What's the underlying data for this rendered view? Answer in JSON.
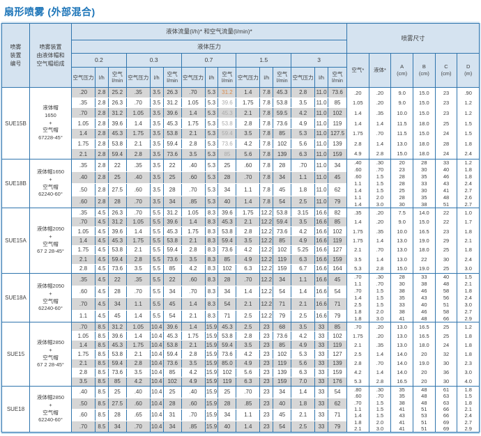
{
  "palette": {
    "accent_blue": "#1b74b8",
    "border_blue": "#2e74ad",
    "header_bg": "#d5e3f0",
    "row_gray": "#d6d6d6",
    "muted_text": "#a9a9a9",
    "highlight_orange": "#d78b4f"
  },
  "title": "扇形喷雾 (外部混合)",
  "header": {
    "device_id": "喷雾\n装置\n编号",
    "composition": "喷雾装置\n由液体帽和\n空气帽组成",
    "flow_title": "液体流量(l/h)* 和空气流量(l/min)*",
    "liquid_pressure": "液体压力",
    "pressures": [
      "0.2",
      "0.3",
      "0.7",
      "1.5",
      "3"
    ],
    "sub_air_pressure": "空气压力",
    "sub_liquid_flow": "l/h",
    "sub_air_flow": "空气\nl/min",
    "spray_size": "喷雾尺寸",
    "dim_cols": [
      "空气*",
      "液体*",
      "A\n(cm)",
      "B\n(cm)",
      "C\n(cm)",
      "D\n(m)"
    ]
  },
  "blocks": [
    {
      "id": "SUE15B",
      "composition": [
        "液体帽",
        "1650",
        "+",
        "空气帽",
        "67228-45°"
      ],
      "shade_start": "gray",
      "highlight": {
        "muted_col": 8,
        "orange_row": 0
      },
      "rows": [
        [
          ".20",
          "2.8",
          "25.2",
          ".35",
          "3.5",
          "26.3",
          ".70",
          "5.3",
          "31.2",
          "1.4",
          "7.8",
          "45.3",
          "2.8",
          "11.0",
          "73.6"
        ],
        [
          ".35",
          "2.8",
          "26.3",
          ".70",
          "3.5",
          "31.2",
          "1.05",
          "5.3",
          "39.6",
          "1.75",
          "7.8",
          "53.8",
          "3.5",
          "11.0",
          "85"
        ],
        [
          ".70",
          "2.8",
          "31.2",
          "1.05",
          "3.5",
          "39.6",
          "1.4",
          "5.3",
          "45.3",
          "2.1",
          "7.8",
          "59.5",
          "4.2",
          "11.0",
          "102"
        ],
        [
          "1.05",
          "2.8",
          "39.6",
          "1.4",
          "3.5",
          "45.3",
          "1.75",
          "5.3",
          "53.8",
          "2.8",
          "7.8",
          "73.6",
          "4.9",
          "11.0",
          "119"
        ],
        [
          "1.4",
          "2.8",
          "45.3",
          "1.75",
          "3.5",
          "53.8",
          "2.1",
          "5.3",
          "59.4",
          "3.5",
          "7.8",
          "85",
          "5.3",
          "11.0",
          "127.5"
        ],
        [
          "1.75",
          "2.8",
          "53.8",
          "2.1",
          "3.5",
          "59.4",
          "2.8",
          "5.3",
          "73.6",
          "4.2",
          "7.8",
          "102",
          "5.6",
          "11.0",
          "139"
        ],
        [
          "2.1",
          "2.8",
          "59.4",
          "2.8",
          "3.5",
          "73.6",
          "3.5",
          "5.3",
          "85",
          "5.6",
          "7.8",
          "139",
          "6.3",
          "11.0",
          "159"
        ]
      ],
      "dims": [
        [
          ".20",
          ".20",
          "9.0",
          "15.0",
          "23",
          ".90"
        ],
        [
          "1.05",
          ".20",
          "9.0",
          "15.0",
          "23",
          "1.2"
        ],
        [
          "1.4",
          ".35",
          "10.0",
          "15.0",
          "23",
          "1.2"
        ],
        [
          "1.4",
          "1.4",
          "11.5",
          "18.0",
          "25",
          "1.5"
        ],
        [
          "1.75",
          ".70",
          "11.5",
          "15.0",
          "24",
          "1.5"
        ],
        [
          "2.8",
          "1.4",
          "13.0",
          "18.0",
          "28",
          "1.8"
        ],
        [
          "4.9",
          "2.8",
          "15.0",
          "18.0",
          "24",
          "2.4"
        ]
      ]
    },
    {
      "id": "SUE18B",
      "composition": [
        "液体帽1650",
        "+",
        "空气帽",
        "62240-60°"
      ],
      "shade_start": "white",
      "rows": [
        [
          ".35",
          "2.8",
          "22",
          ".35",
          "3.5",
          "22",
          ".40",
          "5.3",
          "25",
          ".60",
          "7.8",
          "28",
          ".70",
          "11.0",
          "34"
        ],
        [
          ".40",
          "2.8",
          "25",
          ".40",
          "3.5",
          "25",
          ".60",
          "5.3",
          "28",
          ".70",
          "7.8",
          "34",
          "1.1",
          "11.0",
          "45"
        ],
        [
          ".50",
          "2.8",
          "27.5",
          ".60",
          "3.5",
          "28",
          ".70",
          "5.3",
          "34",
          "1.1",
          "7.8",
          "45",
          "1.8",
          "11.0",
          "62"
        ],
        [
          ".60",
          "2.8",
          "28",
          ".70",
          "3.5",
          "34",
          ".85",
          "5.3",
          "40",
          "1.4",
          "7.8",
          "54",
          "2.5",
          "11.0",
          "79"
        ]
      ],
      "dims": [
        [
          ".40",
          ".30",
          "20",
          "28",
          "33",
          "1.2"
        ],
        [
          ".60",
          ".70",
          "23",
          "30",
          "40",
          "1.8"
        ],
        [
          ".60",
          "1.5",
          "28",
          "35",
          "46",
          "1.8"
        ],
        [
          "1.1",
          "1.5",
          "28",
          "33",
          "43",
          "2.4"
        ],
        [
          "1.4",
          "1.5",
          "25",
          "30",
          "41",
          "2.7"
        ],
        [
          "1.1",
          "2.0",
          "28",
          "35",
          "48",
          "2.6"
        ],
        [
          "1.4",
          "3.0",
          "30",
          "38",
          "51",
          "2.7"
        ]
      ]
    },
    {
      "id": "SUE15A",
      "composition": [
        "液体帽2050",
        "+",
        "空气帽",
        "67 2 28-45°"
      ],
      "shade_start": "white",
      "rows": [
        [
          ".35",
          "4.5",
          "26.3",
          ".70",
          "5.5",
          "31.2",
          "1.05",
          "8.3",
          "39.6",
          "1.75",
          "12.2",
          "53.8",
          "3.15",
          "16.6",
          "82"
        ],
        [
          ".70",
          "4.5",
          "31.2",
          "1.05",
          "5.5",
          "39.6",
          "1.4",
          "8.3",
          "45.3",
          "2.1",
          "12.2",
          "59.4",
          "3.5",
          "16.6",
          "85"
        ],
        [
          "1.05",
          "4.5",
          "39.6",
          "1.4",
          "5.5",
          "45.3",
          "1.75",
          "8.3",
          "53.8",
          "2.8",
          "12.2",
          "73.6",
          "4.2",
          "16.6",
          "102"
        ],
        [
          "1.4",
          "4.5",
          "45.3",
          "1.75",
          "5.5",
          "53.8",
          "2.1",
          "8.3",
          "59.4",
          "3.5",
          "12.2",
          "85",
          "4.9",
          "16.6",
          "119"
        ],
        [
          "1.75",
          "4.5",
          "53.8",
          "2.1",
          "5.5",
          "59.4",
          "2.8",
          "8.3",
          "73.6",
          "4.2",
          "12.2",
          "102",
          "5.25",
          "16.6",
          "127"
        ],
        [
          "2.1",
          "4.5",
          "59.4",
          "2.8",
          "5.5",
          "73.6",
          "3.5",
          "8.3",
          "85",
          "4.9",
          "12.2",
          "119",
          "6.3",
          "16.6",
          "159"
        ],
        [
          "2.8",
          "4.5",
          "73.6",
          "3.5",
          "5.5",
          "85",
          "4.2",
          "8.3",
          "102",
          "6.3",
          "12.2",
          "159",
          "6.7",
          "16.6",
          "164"
        ]
      ],
      "dims": [
        [
          ".35",
          ".20",
          "7.5",
          "14.0",
          "22",
          "1.0"
        ],
        [
          "1.4",
          ".20",
          "9.0",
          "15.0",
          "22",
          "1.7"
        ],
        [
          "1.75",
          ".35",
          "10.0",
          "16.5",
          "23",
          "1.8"
        ],
        [
          "1.75",
          "1.4",
          "13.0",
          "19.0",
          "29",
          "2.1"
        ],
        [
          "2.1",
          ".70",
          "13.0",
          "18.0",
          "25",
          "1.8"
        ],
        [
          "3.5",
          "1.4",
          "13.0",
          "22",
          "30",
          "2.4"
        ],
        [
          "5.3",
          "2.8",
          "15.0",
          "19.0",
          "25",
          "3.0"
        ]
      ]
    },
    {
      "id": "SUE18A",
      "composition": [
        "液体帽2050",
        "+",
        "空气帽",
        "62240-60°"
      ],
      "shade_start": "gray",
      "rows": [
        [
          ".35",
          "4.5",
          "22",
          ".35",
          "5.5",
          "22",
          ".60",
          "8.3",
          "28",
          ".70",
          "12.2",
          "34",
          "1.1",
          "16.6",
          "45"
        ],
        [
          ".60",
          "4.5",
          "28",
          ".70",
          "5.5",
          "34",
          ".70",
          "8.3",
          "34",
          "1.4",
          "12.2",
          "54",
          "1.4",
          "16.6",
          "54"
        ],
        [
          ".70",
          "4.5",
          "34",
          "1.1",
          "5.5",
          "45",
          "1.4",
          "8.3",
          "54",
          "2.1",
          "12.2",
          "71",
          "2.1",
          "16.6",
          "71"
        ],
        [
          "1.1",
          "4.5",
          "45",
          "1.4",
          "5.5",
          "54",
          "2.1",
          "8.3",
          "71",
          "2.5",
          "12.2",
          "79",
          "2.5",
          "16.6",
          "79"
        ]
      ],
      "dims": [
        [
          ".70",
          ".30",
          "28",
          "33",
          "40",
          "1.5"
        ],
        [
          "1.1",
          ".70",
          "30",
          "38",
          "48",
          "2.1"
        ],
        [
          ".70",
          "1.5",
          "38",
          "46",
          "58",
          "1.8"
        ],
        [
          "1.4",
          "1.5",
          "35",
          "43",
          "56",
          "2.4"
        ],
        [
          "2.5",
          "1.5",
          "33",
          "40",
          "51",
          "3.0"
        ],
        [
          "1.8",
          "2.0",
          "38",
          "46",
          "58",
          "2.7"
        ],
        [
          "1.8",
          "3.0",
          "41",
          "48",
          "66",
          "2.9"
        ]
      ]
    },
    {
      "id": "SUE15",
      "composition": [
        "液体帽2850",
        "+",
        "空气帽",
        "67 2 28-45°"
      ],
      "shade_start": "gray",
      "rows": [
        [
          ".70",
          "8.5",
          "31.2",
          "1.05",
          "10.4",
          "39.6",
          "1.4",
          "15.9",
          "45.3",
          "2.5",
          "23",
          "68",
          "3.5",
          "33",
          "85"
        ],
        [
          "1.05",
          "8.5",
          "39.6",
          "1.4",
          "10.4",
          "45.3",
          "1.75",
          "15.9",
          "53.8",
          "2.8",
          "23",
          "73.6",
          "4.2",
          "33",
          "102"
        ],
        [
          "1.4",
          "8.5",
          "45.3",
          "1.75",
          "10.4",
          "53.8",
          "2.1",
          "15.9",
          "59.4",
          "3.5",
          "23",
          "85",
          "4.9",
          "33",
          "119"
        ],
        [
          "1.75",
          "8.5",
          "53.8",
          "2.1",
          "10.4",
          "59.4",
          "2.8",
          "15.9",
          "73.6",
          "4.2",
          "23",
          "102",
          "5.3",
          "33",
          "127"
        ],
        [
          "2.1",
          "8.5",
          "59.4",
          "2.8",
          "10.4",
          "73.6",
          "3.5",
          "15.9",
          "85.0",
          "4.9",
          "23",
          "119",
          "5.6",
          "33",
          "139"
        ],
        [
          "2.8",
          "8.5",
          "73.6",
          "3.5",
          "10.4",
          "85",
          "4.2",
          "15.9",
          "102",
          "5.6",
          "23",
          "139",
          "6.3",
          "33",
          "159"
        ],
        [
          "3.5",
          "8.5",
          "85",
          "4.2",
          "10.4",
          "102",
          "4.9",
          "15.9",
          "119",
          "6.3",
          "23",
          "159",
          "7.0",
          "33",
          "176"
        ]
      ],
      "dims": [
        [
          ".70",
          ".20",
          "13.0",
          "16.5",
          "25",
          "1.2"
        ],
        [
          "1.75",
          ".20",
          "13.0",
          "16.5",
          "25",
          "1.8"
        ],
        [
          "2.1",
          ".35",
          "13.0",
          "18.0",
          "24",
          "1.8"
        ],
        [
          "2.5",
          "1.4",
          "14.0",
          "20",
          "32",
          "1.8"
        ],
        [
          "2.8",
          ".70",
          "14.0",
          "19.0",
          "30",
          "2.3"
        ],
        [
          "4.2",
          "1.4",
          "14.0",
          "20",
          "36",
          "3.0"
        ],
        [
          "5.3",
          "2.8",
          "16.5",
          "20",
          "30",
          "4.0"
        ]
      ]
    },
    {
      "id": "SUE18",
      "composition": [
        "液体帽2850",
        "+",
        "空气帽",
        "62240-60°"
      ],
      "shade_start": "white",
      "rows": [
        [
          ".40",
          "8.5",
          "25",
          ".40",
          "10.4",
          "25",
          ".40",
          "15.9",
          "25",
          ".70",
          "23",
          "34",
          "1.4",
          "33",
          "54"
        ],
        [
          ".50",
          "8.5",
          "27.5",
          ".60",
          "10.4",
          "28",
          ".60",
          "15.9",
          "28",
          ".85",
          "23",
          "40",
          "1.8",
          "33",
          "62"
        ],
        [
          ".60",
          "8.5",
          "28",
          ".65",
          "10.4",
          "31",
          ".70",
          "15.9",
          "34",
          "1.1",
          "23",
          "45",
          "2.1",
          "33",
          "71"
        ],
        [
          ".70",
          "8.5",
          "34",
          ".70",
          "10.4",
          "34",
          ".85",
          "15.9",
          "40",
          "1.4",
          "23",
          "54",
          "2.5",
          "33",
          "79"
        ]
      ],
      "dims": [
        [
          ".80",
          ".30",
          "35",
          "48",
          "61",
          "1.8"
        ],
        [
          ".60",
          ".70",
          "35",
          "48",
          "63",
          "1.5"
        ],
        [
          ".70",
          "1.5",
          "38",
          "48",
          "63",
          "1.8"
        ],
        [
          "1.1",
          "1.5",
          "41",
          "51",
          "66",
          "2.1"
        ],
        [
          "1.4",
          "1.5",
          "43",
          "53",
          "66",
          "2.4"
        ],
        [
          "1.8",
          "2.0",
          "41",
          "51",
          "69",
          "2.7"
        ],
        [
          "2.1",
          "3.0",
          "41",
          "51",
          "69",
          "2.9"
        ]
      ]
    }
  ]
}
